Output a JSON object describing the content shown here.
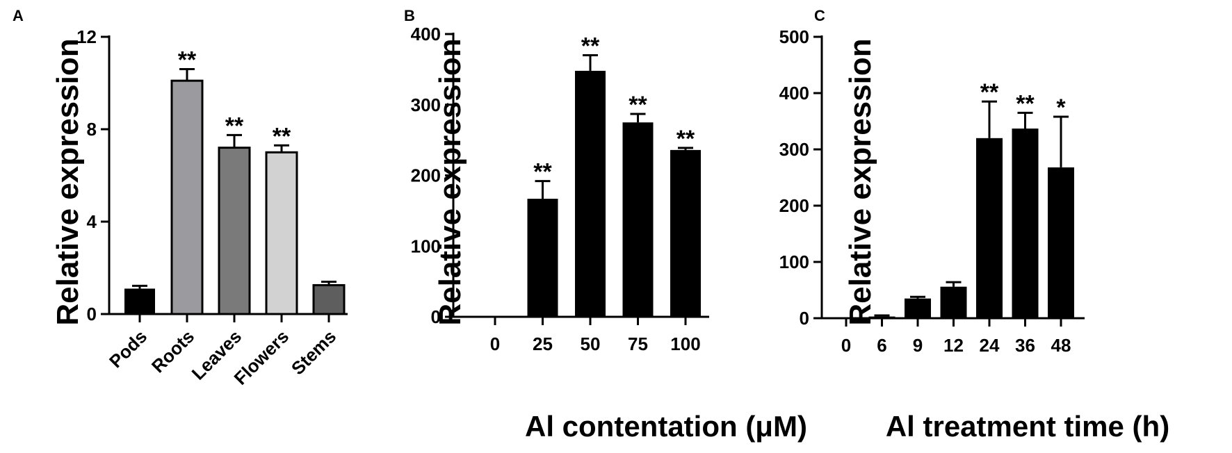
{
  "chart_data": [
    {
      "type": "bar",
      "panel": "A",
      "categories": [
        "Pods",
        "Roots",
        "Leaves",
        "Flowers",
        "Stems"
      ],
      "values": [
        1.1,
        10.1,
        7.2,
        7.0,
        1.25
      ],
      "errors": [
        0.12,
        0.5,
        0.55,
        0.3,
        0.15
      ],
      "significance": [
        "",
        "**",
        "**",
        "**",
        ""
      ],
      "colors": [
        "#000000",
        "#9b9b9f",
        "#7a7a7a",
        "#d2d2d2",
        "#5e5e5e"
      ],
      "ylabel": "Relative  expression",
      "xlabel": "",
      "ylim": [
        0,
        12
      ],
      "yticks": [
        0,
        4,
        8,
        12
      ],
      "grid": false
    },
    {
      "type": "bar",
      "panel": "B",
      "categories": [
        "0",
        "25",
        "50",
        "75",
        "100"
      ],
      "values": [
        1,
        167,
        348,
        275,
        236
      ],
      "errors": [
        0,
        25,
        22,
        12,
        3
      ],
      "significance": [
        "",
        "**",
        "**",
        "**",
        "**"
      ],
      "colors": [
        "#000000",
        "#000000",
        "#000000",
        "#000000",
        "#000000"
      ],
      "ylabel": "Relative  expression",
      "xlabel": "Al contentation (μM)",
      "ylim": [
        0,
        400
      ],
      "yticks": [
        0,
        100,
        200,
        300,
        400
      ],
      "grid": false
    },
    {
      "type": "bar",
      "panel": "C",
      "categories": [
        "0",
        "6",
        "9",
        "12",
        "24",
        "36",
        "48"
      ],
      "values": [
        1,
        3,
        35,
        56,
        320,
        337,
        268
      ],
      "errors": [
        0,
        2,
        3,
        8,
        65,
        28,
        90
      ],
      "significance": [
        "",
        "",
        "",
        "",
        "**",
        "**",
        "*"
      ],
      "colors": [
        "#000000",
        "#000000",
        "#000000",
        "#000000",
        "#000000",
        "#000000",
        "#000000"
      ],
      "ylabel": "Relative  expression",
      "xlabel": "Al treatment time (h)",
      "ylim": [
        0,
        500
      ],
      "yticks": [
        0,
        100,
        200,
        300,
        400,
        500
      ],
      "grid": false
    }
  ]
}
